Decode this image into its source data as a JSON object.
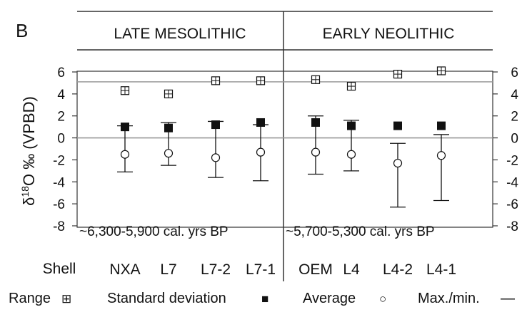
{
  "panel_letter": "B",
  "chart_data": {
    "type": "scatter",
    "ylabel_parts": [
      "δ",
      "18",
      "O ‰ (VPBD)"
    ],
    "ylim": [
      -8,
      6
    ],
    "yticks": [
      6,
      4,
      2,
      0,
      -2,
      -4,
      -6,
      -8
    ],
    "ytick_labels": [
      "6",
      "4",
      "2",
      "0",
      "-2",
      "-4",
      "-6",
      "-8"
    ],
    "reference_lines": [
      5.1,
      0
    ],
    "row_label": "Shell",
    "groups": [
      {
        "label": "LATE MESOLITHIC",
        "date_label": "~6,300-5,900 cal. yrs BP"
      },
      {
        "label": "EARLY NEOLITHIC",
        "date_label": "~5,700-5,300 cal. yrs BP"
      }
    ],
    "categories": [
      "NXA",
      "L7",
      "L7-2",
      "L7-1",
      "OEM",
      "L4",
      "L4-2",
      "L4-1"
    ],
    "series": [
      {
        "name": "Range",
        "values": [
          4.3,
          4.0,
          5.2,
          5.2,
          5.3,
          4.7,
          5.8,
          6.1
        ]
      },
      {
        "name": "Standard deviation",
        "values": [
          1.0,
          0.9,
          1.2,
          1.4,
          1.4,
          1.1,
          1.1,
          1.1
        ]
      },
      {
        "name": "Average",
        "values": [
          -1.5,
          -1.4,
          -1.8,
          -1.3,
          -1.3,
          -1.5,
          -2.3,
          -1.6
        ]
      },
      {
        "name": "Max./min.",
        "max": [
          1.1,
          1.4,
          1.5,
          1.2,
          2.0,
          1.6,
          -0.5,
          0.3
        ],
        "min": [
          -3.1,
          -2.5,
          -3.6,
          -3.9,
          -3.3,
          -3.0,
          -6.3,
          -5.7
        ]
      }
    ],
    "legend_position": "bottom",
    "legend": [
      {
        "label": "Range",
        "symbol": "⊞"
      },
      {
        "label": "Standard deviation",
        "symbol": "■"
      },
      {
        "label": "Average",
        "symbol": "○"
      },
      {
        "label": "Max./min.",
        "symbol": "—"
      }
    ]
  }
}
